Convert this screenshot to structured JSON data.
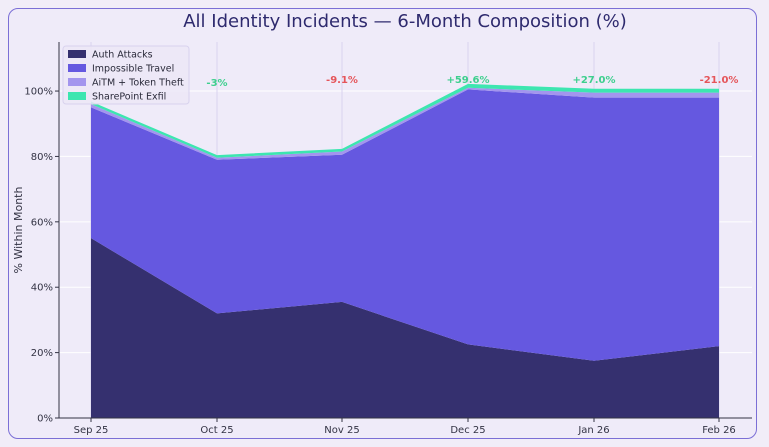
{
  "chart_data": {
    "type": "area",
    "title": "All Identity Incidents — 6-Month Composition (%)",
    "xlabel": "",
    "ylabel": "% Within Month",
    "categories": [
      "Sep 25",
      "Oct 25",
      "Nov 25",
      "Dec 25",
      "Jan 26",
      "Feb 26"
    ],
    "ylim": [
      0,
      115
    ],
    "yticks": [
      0,
      20,
      40,
      60,
      80,
      100
    ],
    "ytick_labels": [
      "0%",
      "20%",
      "40%",
      "60%",
      "80%",
      "100%"
    ],
    "stacked": true,
    "grid": true,
    "legend_position": "top-left",
    "series": [
      {
        "name": "Auth Attacks",
        "color": "#35306f",
        "values": [
          55,
          32,
          35.5,
          22.5,
          17.5,
          22
        ]
      },
      {
        "name": "Impossible Travel",
        "color": "#6558e0",
        "values": [
          40,
          47,
          45,
          78,
          80.5,
          76
        ]
      },
      {
        "name": "AiTM + Token Theft",
        "color": "#a395ee",
        "values": [
          1,
          0.6,
          1,
          0.5,
          1.5,
          1.5
        ]
      },
      {
        "name": "SharePoint Exfil",
        "color": "#3de6b0",
        "values": [
          0.8,
          0.8,
          0.8,
          1.2,
          1.2,
          1.2
        ]
      }
    ],
    "annotations": [
      {
        "category": "Oct 25",
        "text": "-3%",
        "color": "#3ecf8e"
      },
      {
        "category": "Nov 25",
        "text": "-9.1%",
        "color": "#e5555a"
      },
      {
        "category": "Dec 25",
        "text": "+59.6%",
        "color": "#3ecf8e"
      },
      {
        "category": "Jan 26",
        "text": "+27.0%",
        "color": "#3ecf8e"
      },
      {
        "category": "Feb 26",
        "text": "-21.0%",
        "color": "#e5555a"
      }
    ]
  }
}
